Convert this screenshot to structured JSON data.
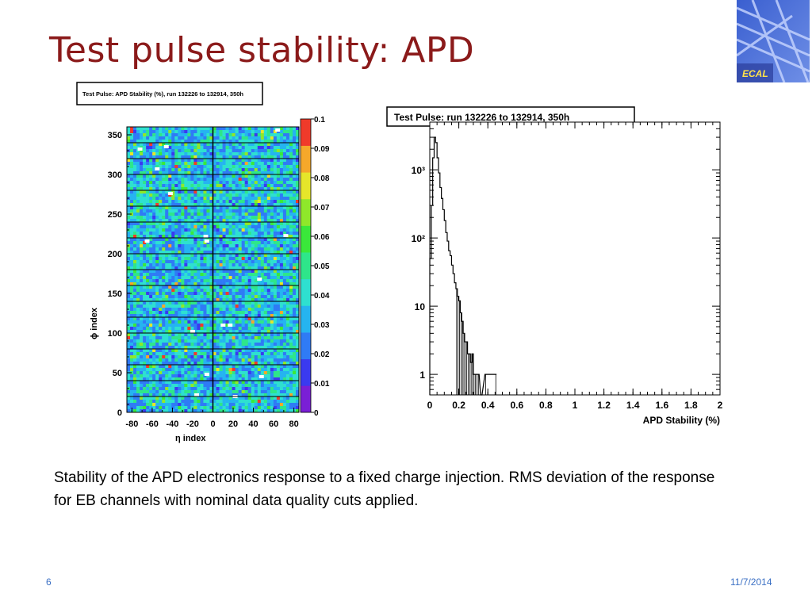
{
  "slide": {
    "title": "Test pulse stability: APD",
    "caption": "Stability of the APD electronics response to a fixed charge injection. RMS deviation of the response for EB channels with nominal data quality cuts applied.",
    "page_number": "6",
    "date": "11/7/2014",
    "logo_text": "ECAL"
  },
  "chart_data": [
    {
      "type": "heatmap",
      "title": "Test Pulse: APD Stability (%), run 132226 to 132914, 350h",
      "xlabel": "η index",
      "ylabel": "ϕ index",
      "x_ticks": [
        "-80",
        "-60",
        "-40",
        "-20",
        "0",
        "20",
        "40",
        "60",
        "80"
      ],
      "y_ticks": [
        "0",
        "50",
        "100",
        "150",
        "200",
        "250",
        "300",
        "350"
      ],
      "xlim": [
        -85,
        85
      ],
      "ylim": [
        0,
        360
      ],
      "colorbar_ticks": [
        "0",
        "0.01",
        "0.02",
        "0.03",
        "0.04",
        "0.05",
        "0.06",
        "0.07",
        "0.08",
        "0.09",
        "0.1"
      ],
      "zlim": [
        0,
        0.1
      ],
      "palette": [
        "#7a1fd6",
        "#3a3af0",
        "#2f7bf5",
        "#25b4f0",
        "#2ee0d0",
        "#2ee68a",
        "#3ae83a",
        "#8fe82a",
        "#e6e62a",
        "#f5a82a",
        "#f03a2a"
      ],
      "typical_value_range": [
        0.02,
        0.05
      ],
      "supermodule_boundaries_phi": [
        20,
        40,
        60,
        80,
        100,
        120,
        140,
        160,
        180,
        200,
        220,
        240,
        260,
        280,
        300,
        320,
        340
      ],
      "eta_gap_at": 0,
      "dead_channels": [
        {
          "eta": 22,
          "phi": 20
        },
        {
          "eta": -16,
          "phi": 22
        },
        {
          "eta": -6,
          "phi": 48
        },
        {
          "eta": 48,
          "phi": 45
        },
        {
          "eta": -20,
          "phi": 102
        },
        {
          "eta": 10,
          "phi": 110
        },
        {
          "eta": 17,
          "phi": 110
        },
        {
          "eta": 46,
          "phi": 168
        },
        {
          "eta": -6,
          "phi": 216
        },
        {
          "eta": -65,
          "phi": 216
        },
        {
          "eta": -7,
          "phi": 222
        },
        {
          "eta": 72,
          "phi": 223
        },
        {
          "eta": -42,
          "phi": 276
        },
        {
          "eta": -55,
          "phi": 307
        },
        {
          "eta": -46,
          "phi": 335
        },
        {
          "eta": 64,
          "phi": 356
        },
        {
          "eta": -72,
          "phi": 332
        }
      ]
    },
    {
      "type": "line",
      "title": "Test Pulse: run 132226 to 132914, 350h",
      "xlabel": "APD Stability (%)",
      "ylabel": "",
      "x_ticks": [
        "0",
        "0.2",
        "0.4",
        "0.6",
        "0.8",
        "1",
        "1.2",
        "1.4",
        "1.6",
        "1.8",
        "2"
      ],
      "y_ticks": [
        "1",
        "10",
        "10³",
        "10²"
      ],
      "y_scale": "log",
      "xlim": [
        0,
        2
      ],
      "ylim": [
        0.5,
        5000
      ],
      "series": [
        {
          "x": [
            0.0,
            0.01,
            0.02,
            0.03,
            0.04,
            0.05,
            0.06,
            0.07,
            0.08,
            0.09,
            0.1,
            0.11,
            0.12,
            0.13,
            0.14,
            0.15,
            0.16,
            0.17,
            0.18,
            0.19,
            0.2,
            0.21,
            0.22,
            0.23,
            0.24,
            0.25,
            0.26,
            0.27,
            0.28,
            0.29,
            0.3,
            0.31,
            0.32,
            0.33,
            0.35,
            0.38,
            0.45
          ],
          "y": [
            50,
            300,
            1500,
            3000,
            2500,
            1500,
            900,
            550,
            380,
            260,
            180,
            120,
            90,
            65,
            55,
            40,
            30,
            22,
            18,
            14,
            12,
            8,
            6,
            4,
            3,
            3,
            2,
            2,
            1.5,
            2,
            1,
            1,
            1,
            1,
            0,
            1,
            1
          ]
        }
      ]
    }
  ]
}
